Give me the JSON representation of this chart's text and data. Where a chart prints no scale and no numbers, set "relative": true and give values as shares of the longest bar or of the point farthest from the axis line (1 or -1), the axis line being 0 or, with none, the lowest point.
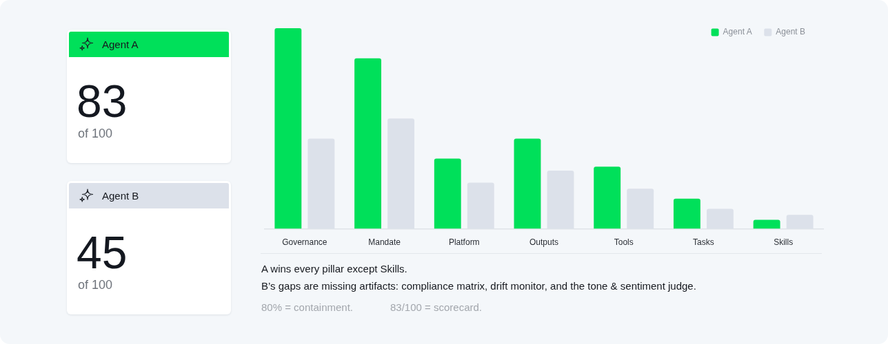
{
  "chart_data": [
    {
      "type": "other",
      "title": "Agent A",
      "color": "#00e05a",
      "annotations": [
        "83",
        "of 100"
      ]
    },
    {
      "type": "other",
      "title": "Agent B",
      "color": "#dce1ea",
      "annotations": [
        "45",
        "of 100"
      ]
    },
    {
      "type": "bar",
      "relative": true,
      "legend": "top right",
      "categories": [
        "Governance",
        "Mandate",
        "Platform",
        "Outputs",
        "Tools",
        "Tasks",
        "Skills"
      ],
      "series": [
        {
          "name": "Agent A",
          "color": "#00e05a",
          "values": [
            1,
            0.85,
            0.35,
            0.45,
            0.31,
            0.15,
            0.045
          ]
        },
        {
          "name": "Agent B",
          "color": "#dce1ea",
          "values": [
            0.45,
            0.55,
            0.23,
            0.29,
            0.2,
            0.1,
            0.07
          ]
        }
      ],
      "annotations": [
        "A wins every pillar except Skills.",
        "B’s gaps are missing artifacts: compliance matrix, drift monitor, and the tone & sentiment judge.",
        "80% = containment.",
        "83/100 = scorecard."
      ]
    }
  ]
}
